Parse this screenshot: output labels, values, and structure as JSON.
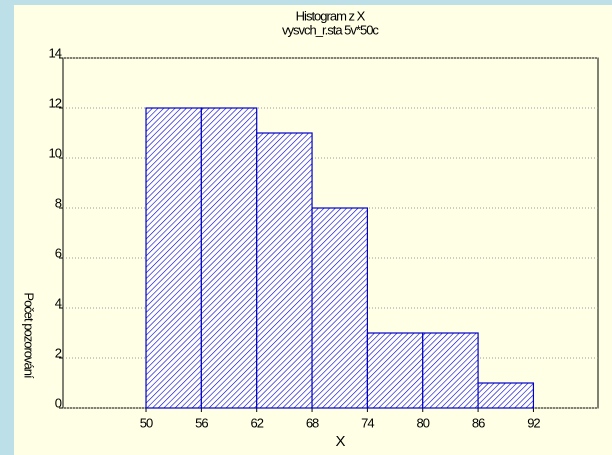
{
  "chart_data": {
    "type": "histogram",
    "title": "Histogram z X",
    "subtitle": "vysvch_r.sta 5v*50c",
    "xlabel": "X",
    "ylabel": "Počet pozorování",
    "bins": [
      50,
      56,
      62,
      68,
      74,
      80,
      86,
      92
    ],
    "counts": [
      12,
      12,
      11,
      8,
      3,
      3,
      1
    ],
    "color": "#0000c8",
    "xlim": [
      41,
      99
    ],
    "xticks": [
      50,
      56,
      62,
      68,
      74,
      80,
      86,
      92
    ],
    "ylim": [
      0,
      14
    ],
    "yticks": [
      0,
      2,
      4,
      6,
      8,
      10,
      12,
      14
    ],
    "grid": true
  }
}
